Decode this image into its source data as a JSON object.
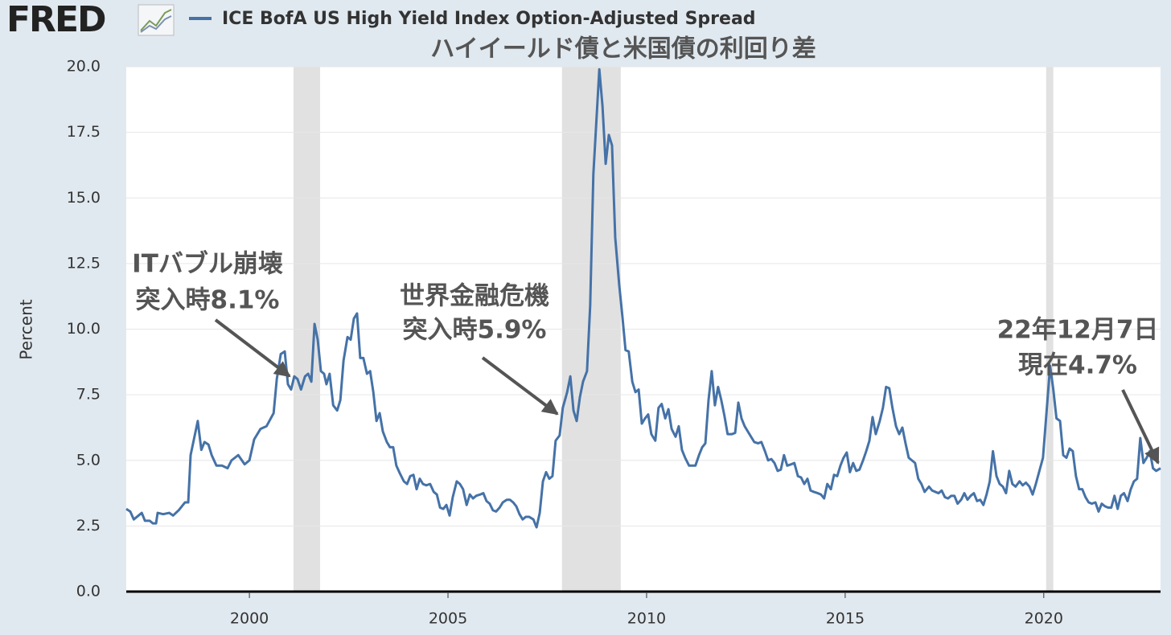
{
  "logo": "FRED",
  "chart_data": {
    "type": "line",
    "title": "ハイイールド債と米国債の利回り差",
    "ylabel": "Percent",
    "series": [
      {
        "name": "ICE BofA US High Yield Index Option-Adjusted Spread",
        "color": "#4572a7",
        "values": [
          3.15,
          3.05,
          2.75,
          2.9,
          3.0,
          2.7,
          2.7,
          2.6,
          2.6,
          3.0,
          2.95,
          3.0,
          2.9,
          3.1,
          3.4,
          3.4,
          5.2,
          6.5,
          5.4,
          5.7,
          5.6,
          5.2,
          4.8,
          4.8,
          4.7,
          5.0,
          5.2,
          4.85,
          5.0,
          5.8,
          6.2,
          6.3,
          6.8,
          8.1,
          9.05,
          9.15,
          7.9,
          7.7,
          8.2,
          8.1,
          7.7,
          8.2,
          8.3,
          8.0,
          10.2,
          9.6,
          8.4,
          8.3,
          7.9,
          8.3,
          7.1,
          6.9,
          7.3,
          8.8,
          9.7,
          9.6,
          10.4,
          10.6,
          8.9,
          8.9,
          8.3,
          8.4,
          7.6,
          6.5,
          6.8,
          6.1,
          5.7,
          5.5,
          5.5,
          4.8,
          4.5,
          4.2,
          4.1,
          4.4,
          4.45,
          3.9,
          4.3,
          4.1,
          4.05,
          4.1,
          3.8,
          3.7,
          3.2,
          3.15,
          3.3,
          2.9,
          3.6,
          4.2,
          4.1,
          3.9,
          3.3,
          3.7,
          3.55,
          3.65,
          3.7,
          3.75,
          3.45,
          3.35,
          3.1,
          3.05,
          3.2,
          3.4,
          3.5,
          3.5,
          3.4,
          3.25,
          2.95,
          2.75,
          2.85,
          2.85,
          2.75,
          2.45,
          3.0,
          4.2,
          4.55,
          4.3,
          4.4,
          5.75,
          5.95,
          7.0,
          7.6,
          8.2,
          6.9,
          6.5,
          7.4,
          8.0,
          8.4,
          10.9,
          15.9,
          19.9,
          18.5,
          16.3,
          17.4,
          17.0,
          13.5,
          11.7,
          10.5,
          9.2,
          9.15,
          8.0,
          7.6,
          7.7,
          6.4,
          6.6,
          6.75,
          6.0,
          5.75,
          7.0,
          7.15,
          6.6,
          6.95,
          6.2,
          5.9,
          6.3,
          5.4,
          5.1,
          4.8,
          4.8,
          4.8,
          5.2,
          5.5,
          5.65,
          7.3,
          8.4,
          7.1,
          7.8,
          7.3,
          6.7,
          6.0,
          6.0,
          6.05,
          7.2,
          6.6,
          6.3,
          6.1,
          5.9,
          5.7,
          5.65,
          5.7,
          5.35,
          5.0,
          5.05,
          4.9,
          4.6,
          4.65,
          5.2,
          4.8,
          4.85,
          4.9,
          4.4,
          4.35,
          4.1,
          4.3,
          3.85,
          3.8,
          3.75,
          3.7,
          3.55,
          4.1,
          3.9,
          4.45,
          4.4,
          4.8,
          5.1,
          5.3,
          4.55,
          4.9,
          4.6,
          4.65,
          5.0,
          5.35,
          5.75,
          6.65,
          6.0,
          6.5,
          7.0,
          7.8,
          7.75,
          7.0,
          6.3,
          6.0,
          6.25,
          5.65,
          5.1,
          5.0,
          4.9,
          4.3,
          4.1,
          3.8,
          4.0,
          3.85,
          3.8,
          3.75,
          3.85,
          3.6,
          3.55,
          3.65,
          3.65,
          3.35,
          3.5,
          3.75,
          3.5,
          3.65,
          3.75,
          3.45,
          3.5,
          3.3,
          3.7,
          4.2,
          5.35,
          4.4,
          4.1,
          4.0,
          3.75,
          4.6,
          4.1,
          4.0,
          4.2,
          4.05,
          4.15,
          4.0,
          3.7,
          4.1,
          5.1,
          8.6,
          7.7,
          6.6,
          6.5,
          5.2,
          5.1,
          5.45,
          5.35,
          4.4,
          3.9,
          3.9,
          3.6,
          3.4,
          3.35,
          3.4,
          3.05,
          3.35,
          3.25,
          3.2,
          3.2,
          3.65,
          3.15,
          3.65,
          3.75,
          3.45,
          3.9,
          4.2,
          4.3,
          5.85,
          4.9,
          5.1,
          5.35,
          4.7,
          4.6,
          4.7
        ]
      }
    ],
    "x": [
      1996.9,
      1997.0,
      1997.09,
      1997.21,
      1997.29,
      1997.37,
      1997.49,
      1997.57,
      1997.65,
      1997.69,
      1997.83,
      1997.98,
      1998.08,
      1998.22,
      1998.38,
      1998.46,
      1998.52,
      1998.7,
      1998.79,
      1998.87,
      1998.97,
      1999.05,
      1999.17,
      1999.31,
      1999.45,
      1999.55,
      1999.72,
      1999.88,
      2000.0,
      2000.12,
      2000.28,
      2000.43,
      2000.61,
      2000.69,
      2000.79,
      2000.89,
      2000.97,
      2001.05,
      2001.13,
      2001.21,
      2001.3,
      2001.4,
      2001.48,
      2001.56,
      2001.64,
      2001.72,
      2001.8,
      2001.88,
      2001.94,
      2002.02,
      2002.11,
      2002.21,
      2002.29,
      2002.37,
      2002.47,
      2002.55,
      2002.63,
      2002.71,
      2002.79,
      2002.87,
      2002.96,
      2003.04,
      2003.12,
      2003.2,
      2003.28,
      2003.36,
      2003.46,
      2003.54,
      2003.62,
      2003.7,
      2003.79,
      2003.89,
      2003.97,
      2004.05,
      2004.13,
      2004.21,
      2004.29,
      2004.37,
      2004.45,
      2004.55,
      2004.64,
      2004.72,
      2004.8,
      2004.88,
      2004.96,
      2005.04,
      2005.12,
      2005.22,
      2005.3,
      2005.38,
      2005.47,
      2005.55,
      2005.63,
      2005.71,
      2005.81,
      2005.89,
      2005.97,
      2006.05,
      2006.13,
      2006.21,
      2006.3,
      2006.38,
      2006.48,
      2006.56,
      2006.64,
      2006.72,
      2006.8,
      2006.88,
      2006.96,
      2007.04,
      2007.15,
      2007.23,
      2007.31,
      2007.39,
      2007.47,
      2007.55,
      2007.63,
      2007.71,
      2007.81,
      2007.89,
      2008.0,
      2008.08,
      2008.16,
      2008.24,
      2008.32,
      2008.4,
      2008.5,
      2008.58,
      2008.66,
      2008.81,
      2008.89,
      2008.97,
      2009.05,
      2009.13,
      2009.21,
      2009.31,
      2009.39,
      2009.47,
      2009.55,
      2009.64,
      2009.72,
      2009.8,
      2009.88,
      2009.96,
      2010.04,
      2010.12,
      2010.22,
      2010.3,
      2010.38,
      2010.47,
      2010.55,
      2010.63,
      2010.73,
      2010.81,
      2010.89,
      2010.97,
      2011.07,
      2011.15,
      2011.23,
      2011.32,
      2011.4,
      2011.48,
      2011.56,
      2011.64,
      2011.72,
      2011.8,
      2011.88,
      2011.96,
      2012.04,
      2012.15,
      2012.23,
      2012.31,
      2012.39,
      2012.47,
      2012.55,
      2012.63,
      2012.71,
      2012.81,
      2012.89,
      2012.98,
      2013.06,
      2013.14,
      2013.22,
      2013.3,
      2013.38,
      2013.46,
      2013.54,
      2013.64,
      2013.72,
      2013.81,
      2013.89,
      2013.97,
      2014.05,
      2014.13,
      2014.21,
      2014.31,
      2014.39,
      2014.47,
      2014.55,
      2014.64,
      2014.72,
      2014.8,
      2014.88,
      2014.96,
      2015.04,
      2015.12,
      2015.2,
      2015.28,
      2015.36,
      2015.45,
      2015.53,
      2015.61,
      2015.69,
      2015.77,
      2015.87,
      2015.95,
      2016.03,
      2016.11,
      2016.19,
      2016.28,
      2016.36,
      2016.44,
      2016.52,
      2016.6,
      2016.68,
      2016.76,
      2016.84,
      2016.92,
      2017.0,
      2017.11,
      2017.19,
      2017.27,
      2017.35,
      2017.43,
      2017.51,
      2017.59,
      2017.67,
      2017.75,
      2017.83,
      2017.92,
      2018.0,
      2018.08,
      2018.16,
      2018.24,
      2018.32,
      2018.4,
      2018.48,
      2018.56,
      2018.64,
      2018.72,
      2018.81,
      2018.89,
      2018.97,
      2019.05,
      2019.13,
      2019.21,
      2019.29,
      2019.39,
      2019.47,
      2019.55,
      2019.64,
      2019.72,
      2019.8,
      2019.98,
      2020.16,
      2020.24,
      2020.32,
      2020.41,
      2020.49,
      2020.57,
      2020.65,
      2020.73,
      2020.81,
      2020.89,
      2020.97,
      2021.05,
      2021.13,
      2021.21,
      2021.3,
      2021.38,
      2021.46,
      2021.54,
      2021.62,
      2021.7,
      2021.78,
      2021.86,
      2021.94,
      2022.02,
      2022.11,
      2022.19,
      2022.27,
      2022.35,
      2022.43,
      2022.51,
      2022.59,
      2022.67,
      2022.75,
      2022.83,
      2022.94
    ],
    "xlim": [
      1996.9,
      2022.94
    ],
    "xticks": [
      2000,
      2005,
      2010,
      2015,
      2020
    ],
    "ylim": [
      0,
      20
    ],
    "yticks": [
      {
        "value": 0,
        "label": "0.0"
      },
      2.5,
      {
        "value": 5,
        "label": "5.0"
      },
      7.5,
      {
        "value": 10,
        "label": "10.0"
      },
      12.5,
      {
        "value": 15,
        "label": "15.0"
      },
      17.5,
      {
        "value": 20,
        "label": "20.0"
      }
    ],
    "grid": true,
    "recessions": [
      [
        2001.11,
        2001.78
      ],
      [
        2007.87,
        2009.35
      ],
      [
        2020.06,
        2020.24
      ]
    ],
    "recession_color": "#e1e1e1",
    "annotations": [
      {
        "lines": [
          "ITバブル崩壊",
          "突入時8.1%"
        ]
      },
      {
        "lines": [
          "世界金融危機",
          "突入時5.9%"
        ]
      },
      {
        "lines": [
          "22年12月7日",
          "現在4.7%"
        ]
      }
    ]
  }
}
